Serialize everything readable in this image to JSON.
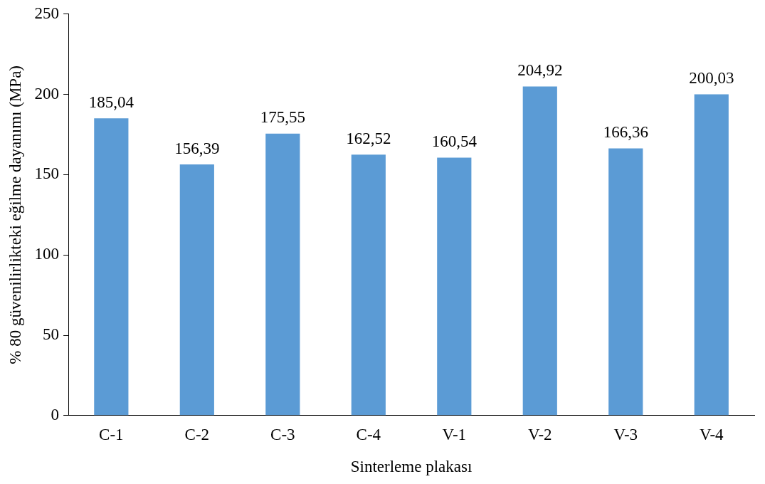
{
  "chart_data": {
    "type": "bar",
    "xlabel": "Sinterleme plakası",
    "ylabel": "% 80 güvenilirlikteki eğilme dayanımı (MPa)",
    "categories": [
      "C-1",
      "C-2",
      "C-3",
      "C-4",
      "V-1",
      "V-2",
      "V-3",
      "V-4"
    ],
    "values": [
      185.04,
      156.39,
      175.55,
      162.52,
      160.54,
      204.92,
      166.36,
      200.03
    ],
    "value_labels": [
      "185,04",
      "156,39",
      "175,55",
      "162,52",
      "160,54",
      "204,92",
      "166,36",
      "200,03"
    ],
    "color": "#5b9bd5",
    "ylim": [
      0,
      250
    ],
    "yticks": [
      0,
      50,
      100,
      150,
      200,
      250
    ],
    "grid": false,
    "legend": false
  }
}
